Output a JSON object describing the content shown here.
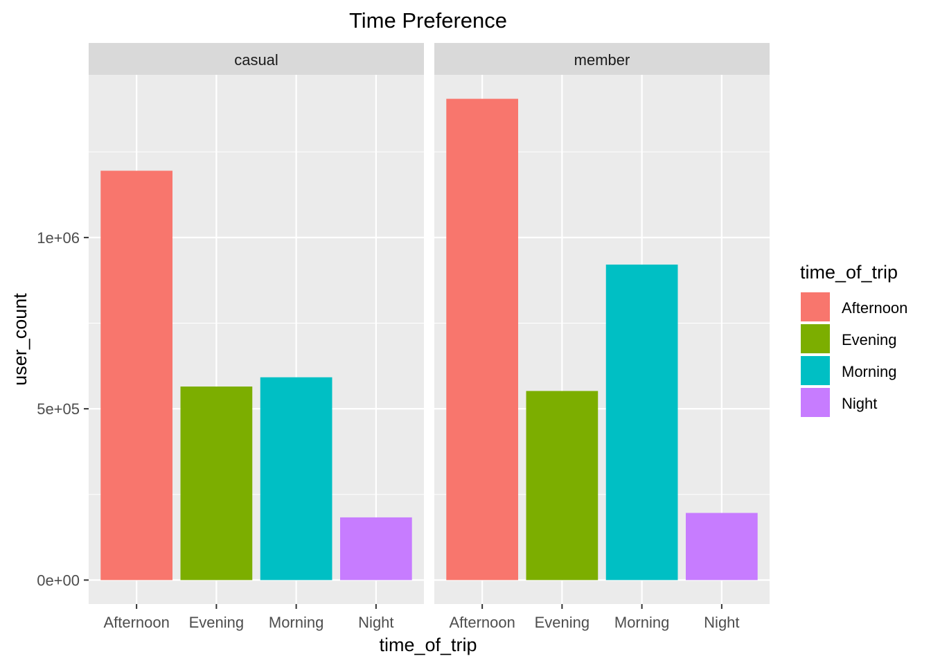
{
  "chart_data": {
    "type": "bar",
    "title": "Time Preference",
    "xlabel": "time_of_trip",
    "ylabel": "user_count",
    "categories": [
      "Afternoon",
      "Evening",
      "Morning",
      "Night"
    ],
    "facets": [
      {
        "name": "casual",
        "values": [
          1195000,
          565000,
          592000,
          183000
        ]
      },
      {
        "name": "member",
        "values": [
          1405000,
          552000,
          921000,
          196000
        ]
      }
    ],
    "y_ticks": [
      {
        "value": 0,
        "label": "0e+00"
      },
      {
        "value": 500000,
        "label": "5e+05"
      },
      {
        "value": 1000000,
        "label": "1e+06"
      }
    ],
    "ylim": [
      -70000,
      1475000
    ],
    "grid": true,
    "legend": {
      "title": "time_of_trip",
      "placement": "right",
      "entries": [
        "Afternoon",
        "Evening",
        "Morning",
        "Night"
      ]
    },
    "colors": {
      "Afternoon": "#F8766D",
      "Evening": "#7CAE00",
      "Morning": "#00BFC4",
      "Night": "#C77CFF"
    }
  }
}
